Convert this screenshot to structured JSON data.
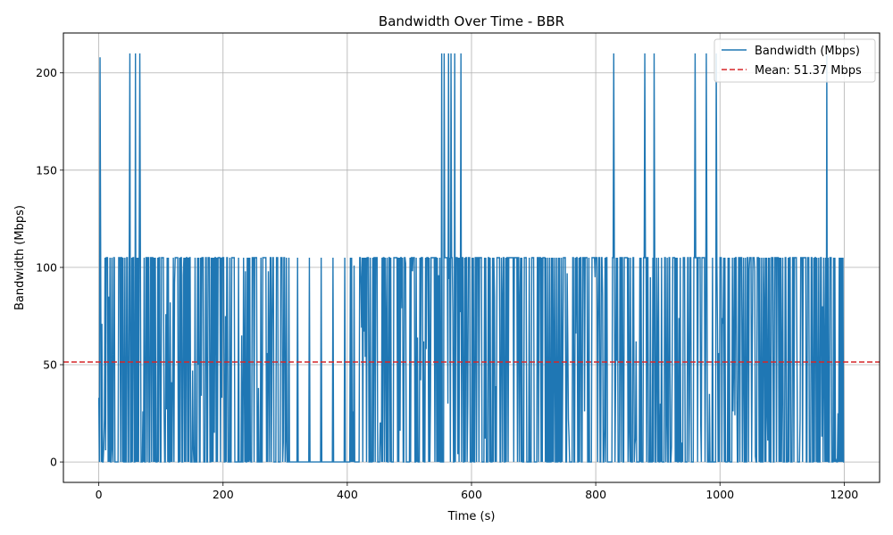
{
  "chart_data": {
    "type": "line",
    "title": "Bandwidth Over Time - BBR",
    "xlabel": "Time (s)",
    "ylabel": "Bandwidth (Mbps)",
    "xlim": [
      -57,
      1257
    ],
    "ylim": [
      -10.5,
      220.5
    ],
    "xticks": [
      0,
      200,
      400,
      600,
      800,
      1000,
      1200
    ],
    "yticks": [
      0,
      50,
      100,
      150,
      200
    ],
    "grid": true,
    "legend_position": "top-right",
    "series": [
      {
        "name": "Bandwidth (Mbps)",
        "color": "#1f77b4",
        "pattern": "rapid oscillation between 0 and 105 Mbps sampled roughly every second over 0-1200 s, with occasional peaks near 210 Mbps and a mostly idle stretch around 300-405 s",
        "base_high": 105,
        "base_low": 0,
        "peaks": [
          {
            "x": 2,
            "y": 208
          },
          {
            "x": 50,
            "y": 210
          },
          {
            "x": 59,
            "y": 210
          },
          {
            "x": 66,
            "y": 210
          },
          {
            "x": 552,
            "y": 210
          },
          {
            "x": 556,
            "y": 210
          },
          {
            "x": 563,
            "y": 210
          },
          {
            "x": 567,
            "y": 210
          },
          {
            "x": 573,
            "y": 210
          },
          {
            "x": 583,
            "y": 210
          },
          {
            "x": 829,
            "y": 210
          },
          {
            "x": 879,
            "y": 210
          },
          {
            "x": 894,
            "y": 210
          },
          {
            "x": 960,
            "y": 210
          },
          {
            "x": 978,
            "y": 210
          },
          {
            "x": 994,
            "y": 210
          },
          {
            "x": 1172,
            "y": 210
          }
        ],
        "isolated_spikes_in_idle_gap": [
          306,
          320,
          339,
          358,
          377,
          396
        ],
        "start": {
          "x": 0,
          "y": 33
        },
        "end": {
          "x": 1200,
          "y": 0
        }
      },
      {
        "name": "Mean: 51.37 Mbps",
        "color": "#d62728",
        "style": "dashed",
        "y": 51.37
      }
    ],
    "legend": [
      "Bandwidth (Mbps)",
      "Mean: 51.37 Mbps"
    ]
  }
}
